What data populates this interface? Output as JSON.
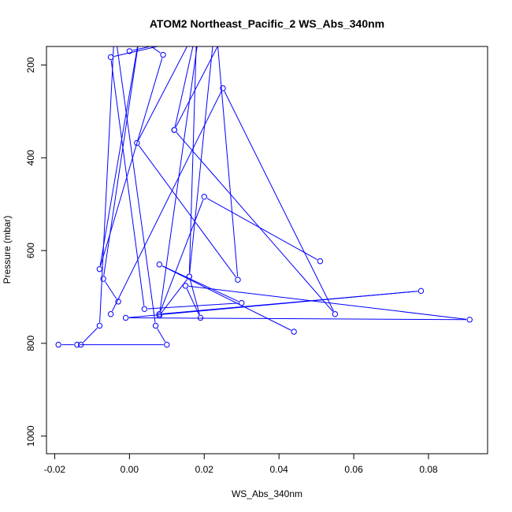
{
  "chart_data": {
    "type": "line",
    "title": "ATOM2 Northeast_Pacific_2 WS_Abs_340nm",
    "xlabel": "WS_Abs_340nm",
    "ylabel": "Pressure (mbar)",
    "xlim": [
      -0.0222,
      0.0958
    ],
    "ylim": [
      1038,
      160
    ],
    "y_reversed": true,
    "x_ticks": [
      -0.02,
      0.0,
      0.02,
      0.04,
      0.06,
      0.08
    ],
    "x_tick_labels": [
      "-0.02",
      "0.00",
      "0.02",
      "0.04",
      "0.06",
      "0.08"
    ],
    "y_ticks": [
      200,
      400,
      600,
      800,
      1000
    ],
    "y_tick_labels": [
      "200",
      "400",
      "600",
      "800",
      "1000"
    ],
    "grid": false,
    "color": "#0000ff",
    "series": [
      {
        "points": [
          [
            -0.019,
            803
          ],
          [
            -0.014,
            803
          ],
          [
            0.01,
            803
          ],
          [
            0.007,
            762
          ],
          [
            -0.004,
            120
          ],
          [
            -0.008,
            762
          ],
          [
            -0.013,
            803
          ]
        ]
      },
      {
        "points": [
          [
            -0.005,
            737
          ],
          [
            0.025,
            250
          ],
          [
            0.055,
            737
          ],
          [
            0.012,
            340
          ],
          [
            0.02,
            50
          ],
          [
            0.008,
            740
          ],
          [
            0.016,
            656
          ],
          [
            0.018,
            120
          ],
          [
            0.002,
            368
          ],
          [
            0.029,
            663
          ],
          [
            0.023,
            100
          ],
          [
            0.016,
            656
          ],
          [
            0.019,
            745
          ],
          [
            0.015,
            676
          ],
          [
            0.091,
            749
          ],
          [
            -0.001,
            745
          ],
          [
            0.078,
            687
          ],
          [
            0.008,
            737
          ],
          [
            0.02,
            484
          ],
          [
            0.051,
            623
          ]
        ]
      },
      {
        "points": [
          [
            -0.003,
            710
          ],
          [
            -0.007,
            661
          ],
          [
            0.003,
            120
          ],
          [
            -0.008,
            640
          ],
          [
            0.009,
            178
          ],
          [
            -0.012,
            60
          ]
        ]
      },
      {
        "points": [
          [
            0.044,
            775
          ],
          [
            0.008,
            630
          ],
          [
            0.03,
            713
          ],
          [
            0.004,
            726
          ],
          [
            -0.005,
            183
          ],
          [
            0.04,
            100
          ]
        ]
      },
      {
        "points": [
          [
            0.012,
            340
          ],
          [
            0.03,
            60
          ]
        ]
      },
      {
        "points": [
          [
            0.0,
            170
          ],
          [
            0.045,
            90
          ]
        ]
      }
    ]
  }
}
